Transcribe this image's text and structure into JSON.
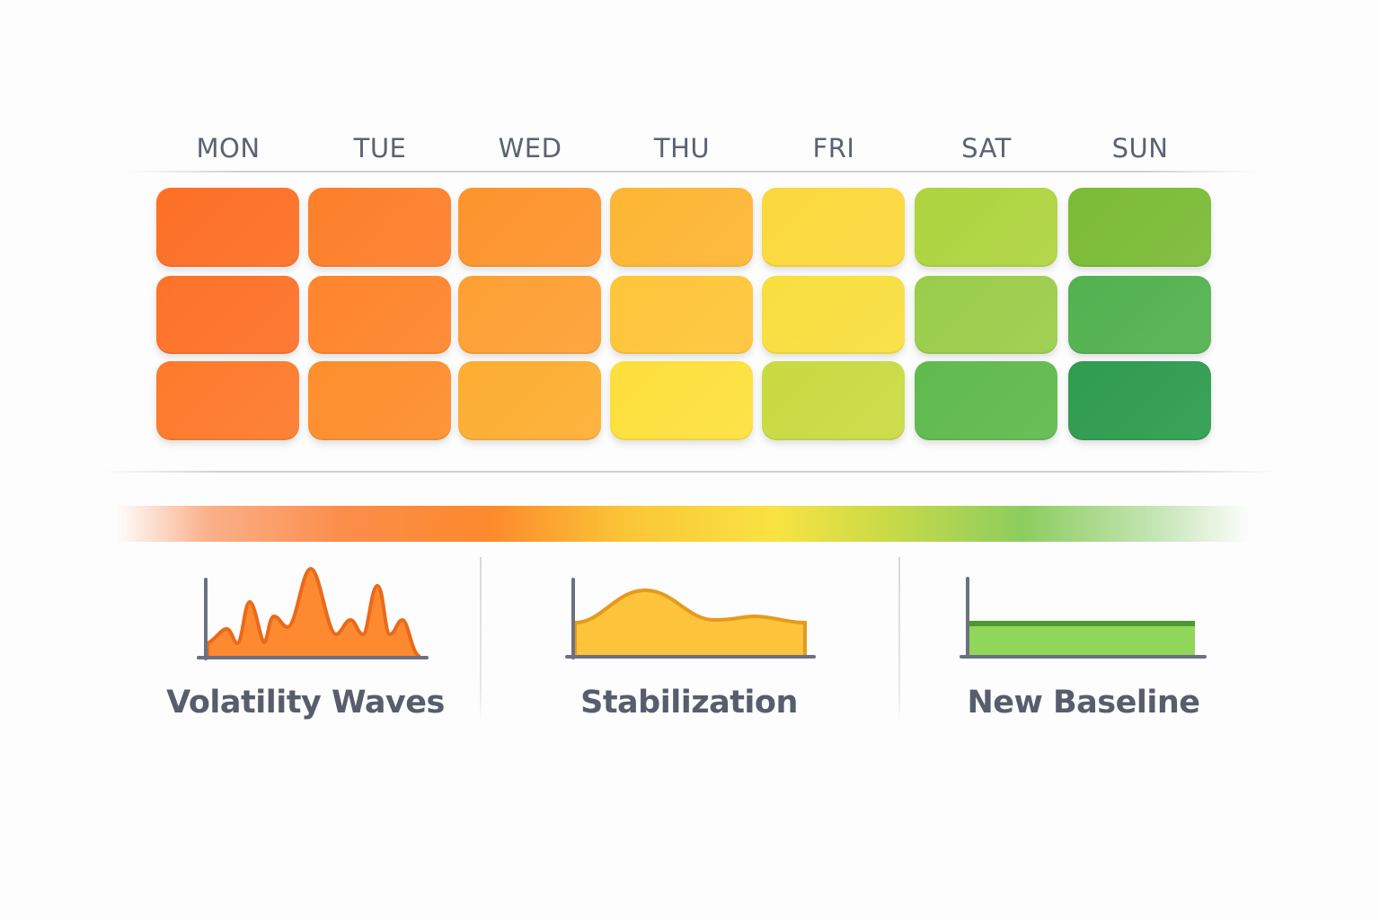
{
  "days": [
    "MON",
    "TUE",
    "WED",
    "THU",
    "FRI",
    "SAT",
    "SUN"
  ],
  "grid_colors": [
    [
      "#fd6f25",
      "#fd7f2a",
      "#fd942c",
      "#fdb634",
      "#fbd83c",
      "#aed43f",
      "#7bbb36"
    ],
    [
      "#fd7229",
      "#fe852c",
      "#fda033",
      "#fec53a",
      "#f8df3f",
      "#9acd4a",
      "#52b24f"
    ],
    [
      "#fd7a2b",
      "#fd8e2c",
      "#fdae32",
      "#fde03d",
      "#c9da42",
      "#5fba4d",
      "#2e9c4f"
    ]
  ],
  "phases": [
    {
      "label": "Volatility Waves",
      "color": "#fd7a2b"
    },
    {
      "label": "Stabilization",
      "color": "#fdc33a"
    },
    {
      "label": "New Baseline",
      "color": "#8fd65a"
    }
  ]
}
